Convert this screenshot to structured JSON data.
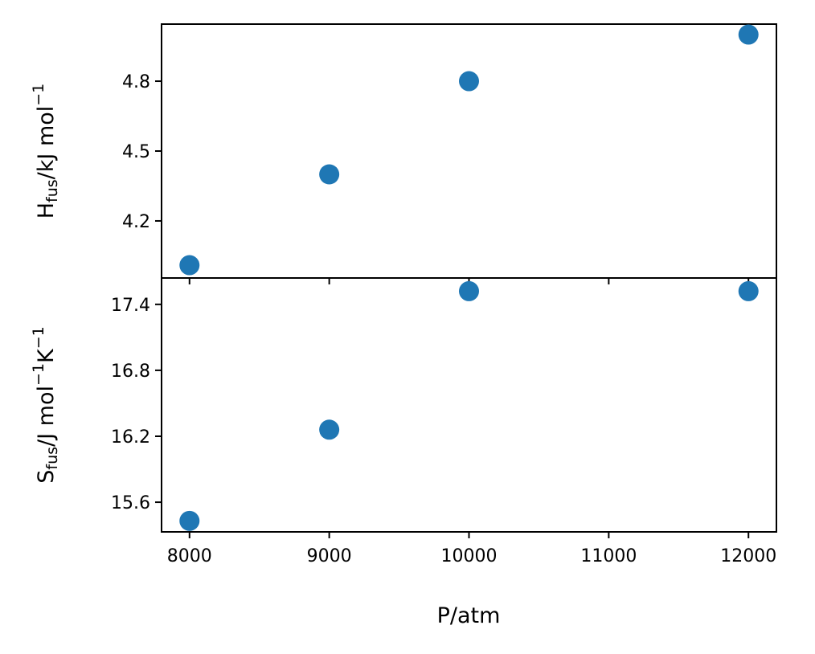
{
  "chart_data": [
    {
      "type": "scatter",
      "panel": "top",
      "xlabel": "",
      "ylabel": {
        "main": "H",
        "sub": "fus",
        "rest": "/kJ mol",
        "sup": "−1"
      },
      "x": [
        8000,
        9000,
        10000,
        12000
      ],
      "y": [
        4.01,
        4.4,
        4.8,
        5.0
      ],
      "ylim": [
        3.955,
        5.045
      ],
      "yticks": [
        4.2,
        4.5,
        4.8
      ],
      "ytick_labels": [
        "4.2",
        "4.5",
        "4.8"
      ],
      "marker_color": "#1f77b4"
    },
    {
      "type": "scatter",
      "panel": "bottom",
      "xlabel": "P/atm",
      "ylabel": {
        "main": "S",
        "sub": "fus",
        "rest": "/J mol",
        "sup1": "−1",
        "rest2": "K",
        "sup2": "−1"
      },
      "x": [
        8000,
        9000,
        10000,
        12000
      ],
      "y": [
        15.43,
        16.26,
        17.52,
        17.52
      ],
      "ylim": [
        15.33,
        17.64
      ],
      "yticks": [
        15.6,
        16.2,
        16.8,
        17.4
      ],
      "ytick_labels": [
        "15.6",
        "16.2",
        "16.8",
        "17.4"
      ],
      "marker_color": "#1f77b4"
    }
  ],
  "shared_x": {
    "xlim": [
      7800,
      12200
    ],
    "xticks": [
      8000,
      9000,
      10000,
      11000,
      12000
    ],
    "xtick_labels": [
      "8000",
      "9000",
      "10000",
      "11000",
      "12000"
    ]
  }
}
